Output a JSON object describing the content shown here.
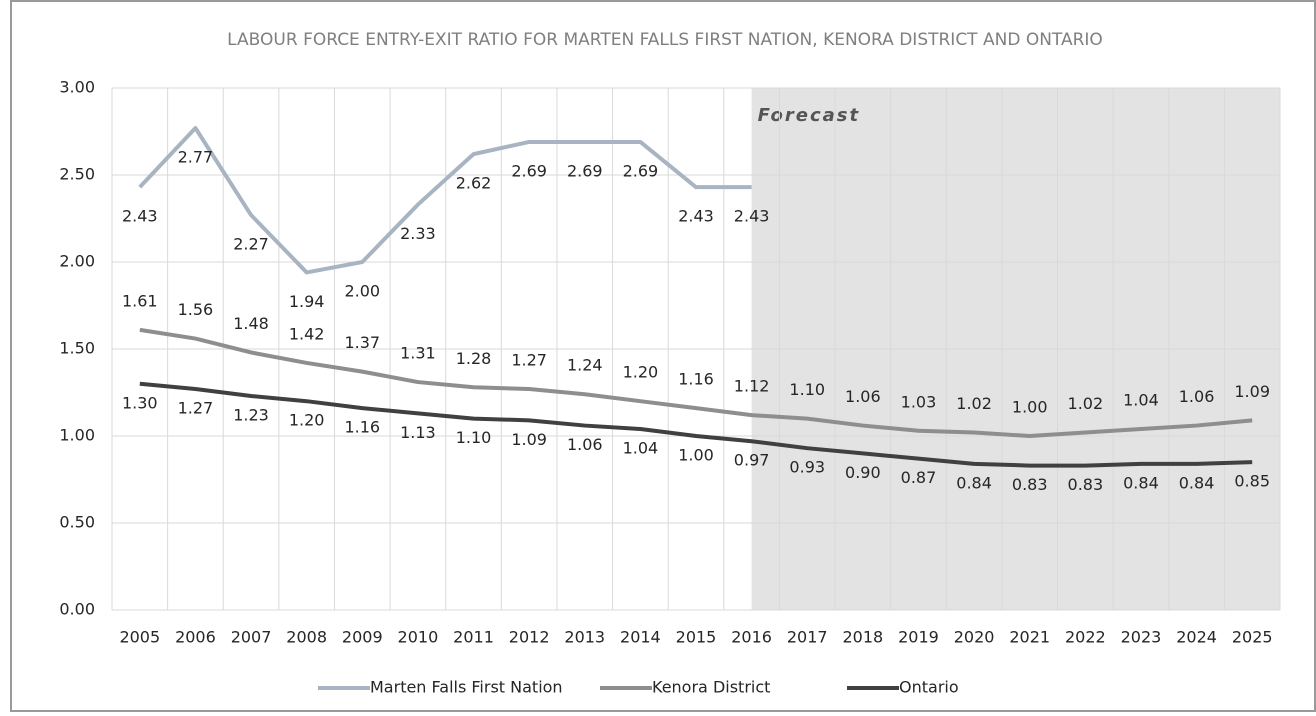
{
  "chart_data": {
    "type": "line",
    "title": "LABOUR FORCE ENTRY-EXIT RATIO FOR MARTEN FALLS FIRST NATION, KENORA DISTRICT AND ONTARIO",
    "categories": [
      "2005",
      "2006",
      "2007",
      "2008",
      "2009",
      "2010",
      "2011",
      "2012",
      "2013",
      "2014",
      "2015",
      "2016",
      "2017",
      "2018",
      "2019",
      "2020",
      "2021",
      "2022",
      "2023",
      "2024",
      "2025"
    ],
    "series": [
      {
        "name": "Marten Falls First Nation",
        "color": "#a9b4c3",
        "values": [
          2.43,
          2.77,
          2.27,
          1.94,
          2.0,
          2.33,
          2.62,
          2.69,
          2.69,
          2.69,
          2.43,
          2.43,
          null,
          null,
          null,
          null,
          null,
          null,
          null,
          null,
          null
        ],
        "value_labels": [
          "2.43",
          "2.77",
          "2.27",
          "1.94",
          "2.00",
          "2.33",
          "2.62",
          "2.69",
          "2.69",
          "2.69",
          "2.43",
          "2.43",
          null,
          null,
          null,
          null,
          null,
          null,
          null,
          null,
          null
        ]
      },
      {
        "name": "Kenora District",
        "color": "#8e8e8e",
        "values": [
          1.61,
          1.56,
          1.48,
          1.42,
          1.37,
          1.31,
          1.28,
          1.27,
          1.24,
          1.2,
          1.16,
          1.12,
          1.1,
          1.06,
          1.03,
          1.02,
          1.0,
          1.02,
          1.04,
          1.06,
          1.09
        ],
        "value_labels": [
          "1.61",
          "1.56",
          "1.48",
          "1.42",
          "1.37",
          "1.31",
          "1.28",
          "1.27",
          "1.24",
          "1.20",
          "1.16",
          "1.12",
          "1.10",
          "1.06",
          "1.03",
          "1.02",
          "1.00",
          "1.02",
          "1.04",
          "1.06",
          "1.09"
        ]
      },
      {
        "name": "Ontario",
        "color": "#404040",
        "values": [
          1.3,
          1.27,
          1.23,
          1.2,
          1.16,
          1.13,
          1.1,
          1.09,
          1.06,
          1.04,
          1.0,
          0.97,
          0.93,
          0.9,
          0.87,
          0.84,
          0.83,
          0.83,
          0.84,
          0.84,
          0.85
        ],
        "value_labels": [
          "1.30",
          "1.27",
          "1.23",
          "1.20",
          "1.16",
          "1.13",
          "1.10",
          "1.09",
          "1.06",
          "1.04",
          "1.00",
          "0.97",
          "0.93",
          "0.90",
          "0.87",
          "0.84",
          "0.83",
          "0.83",
          "0.84",
          "0.84",
          "0.85"
        ]
      }
    ],
    "ylim": [
      0,
      3
    ],
    "yticks": [
      {
        "value": 0,
        "label": "0.00"
      },
      {
        "value": 0.5,
        "label": "0.50"
      },
      {
        "value": 1,
        "label": "1.00"
      },
      {
        "value": 1.5,
        "label": "1.50"
      },
      {
        "value": 2,
        "label": "2.00"
      },
      {
        "value": 2.5,
        "label": "2.50"
      },
      {
        "value": 3,
        "label": "3.00"
      }
    ],
    "grid": true,
    "legend": "bottom",
    "annotation": {
      "text": "Forecast",
      "from": "2016"
    }
  }
}
